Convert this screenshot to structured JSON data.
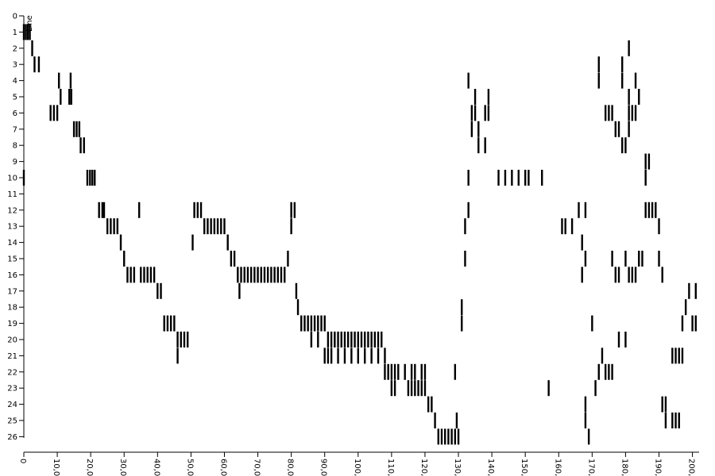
{
  "chart_data": {
    "type": "scatter",
    "title": "",
    "xlabel": "",
    "ylabel": "Line",
    "xlim": [
      0,
      202
    ],
    "ylim": [
      0,
      26
    ],
    "y_ticks": [
      "0",
      "1",
      "2",
      "3",
      "4",
      "5",
      "6",
      "7",
      "8",
      "9",
      "10",
      "11",
      "12",
      "13",
      "14",
      "15",
      "16",
      "17",
      "18",
      "19",
      "20",
      "21",
      "22",
      "23",
      "24",
      "25",
      "26"
    ],
    "x_ticks": [
      "0",
      "10,0",
      "20,0",
      "30,0",
      "40,0",
      "50,0",
      "60,0",
      "70,0",
      "80,0",
      "90,0",
      "100,",
      "110,",
      "120,",
      "130,",
      "140,",
      "150,",
      "160,",
      "170,",
      "180,",
      "190,",
      "200,"
    ],
    "x_tick_values": [
      0,
      10,
      20,
      30,
      40,
      50,
      60,
      70,
      80,
      90,
      100,
      110,
      120,
      130,
      140,
      150,
      160,
      170,
      180,
      190,
      200
    ],
    "grid": false,
    "legend": "none",
    "series": [
      {
        "points": [
          [
            0,
            1
          ],
          [
            0.6,
            1
          ],
          [
            1.2,
            1
          ],
          [
            1.8,
            1
          ],
          [
            2.5,
            2
          ],
          [
            3.2,
            3
          ],
          [
            4.5,
            3
          ],
          [
            10.5,
            4
          ],
          [
            11,
            5
          ],
          [
            14,
            4
          ],
          [
            13.6,
            5
          ],
          [
            14.2,
            5
          ],
          [
            8,
            6
          ],
          [
            9,
            6
          ],
          [
            10,
            6
          ],
          [
            15,
            7
          ],
          [
            15.8,
            7
          ],
          [
            16.6,
            7
          ],
          [
            17,
            8
          ],
          [
            18,
            8
          ],
          [
            19,
            10
          ],
          [
            19.8,
            10
          ],
          [
            20.5,
            10
          ],
          [
            21.2,
            10
          ],
          [
            0,
            10
          ],
          [
            22.5,
            12
          ],
          [
            23.5,
            12
          ],
          [
            24,
            12
          ],
          [
            25,
            13
          ],
          [
            26,
            13
          ],
          [
            27,
            13
          ],
          [
            28,
            13
          ],
          [
            29,
            14
          ],
          [
            30,
            15
          ],
          [
            31,
            16
          ],
          [
            32,
            16
          ],
          [
            33,
            16
          ],
          [
            34.5,
            12
          ],
          [
            35,
            16
          ],
          [
            36,
            16
          ],
          [
            37,
            16
          ],
          [
            38,
            16
          ],
          [
            39,
            16
          ],
          [
            40,
            17
          ],
          [
            41,
            17
          ],
          [
            42,
            19
          ],
          [
            43,
            19
          ],
          [
            44,
            19
          ],
          [
            45,
            19
          ],
          [
            46,
            20
          ],
          [
            47,
            20
          ],
          [
            48,
            20
          ],
          [
            49,
            20
          ],
          [
            46,
            21
          ],
          [
            50.5,
            14
          ],
          [
            51,
            12
          ],
          [
            52,
            12
          ],
          [
            53,
            12
          ],
          [
            54,
            13
          ],
          [
            55,
            13
          ],
          [
            56,
            13
          ],
          [
            57,
            13
          ],
          [
            58,
            13
          ],
          [
            59,
            13
          ],
          [
            60,
            13
          ],
          [
            61,
            14
          ],
          [
            62,
            15
          ],
          [
            63,
            15
          ],
          [
            64,
            16
          ],
          [
            65,
            16
          ],
          [
            66,
            16
          ],
          [
            67,
            16
          ],
          [
            68,
            16
          ],
          [
            69,
            16
          ],
          [
            70,
            16
          ],
          [
            71,
            16
          ],
          [
            72,
            16
          ],
          [
            73,
            16
          ],
          [
            74,
            16
          ],
          [
            75,
            16
          ],
          [
            76,
            16
          ],
          [
            77,
            16
          ],
          [
            78,
            16
          ],
          [
            64.5,
            17
          ],
          [
            79,
            15
          ],
          [
            80,
            12
          ],
          [
            80,
            13
          ],
          [
            81,
            12
          ],
          [
            81.5,
            17
          ],
          [
            82,
            18
          ],
          [
            83,
            19
          ],
          [
            84,
            19
          ],
          [
            85,
            19
          ],
          [
            86,
            19
          ],
          [
            87,
            19
          ],
          [
            88,
            19
          ],
          [
            89,
            19
          ],
          [
            90,
            19
          ],
          [
            86,
            20
          ],
          [
            88,
            20
          ],
          [
            91,
            20
          ],
          [
            92,
            20
          ],
          [
            93,
            20
          ],
          [
            94,
            20
          ],
          [
            95,
            20
          ],
          [
            96,
            20
          ],
          [
            97,
            20
          ],
          [
            98,
            20
          ],
          [
            99,
            20
          ],
          [
            100,
            20
          ],
          [
            101,
            20
          ],
          [
            102,
            20
          ],
          [
            103,
            20
          ],
          [
            104,
            20
          ],
          [
            105,
            20
          ],
          [
            106,
            20
          ],
          [
            107,
            20
          ],
          [
            90,
            21
          ],
          [
            91,
            21
          ],
          [
            92,
            21
          ],
          [
            94,
            21
          ],
          [
            96,
            21
          ],
          [
            98,
            21
          ],
          [
            100,
            21
          ],
          [
            102,
            21
          ],
          [
            104,
            21
          ],
          [
            106,
            21
          ],
          [
            108,
            21
          ],
          [
            108,
            22
          ],
          [
            109,
            22
          ],
          [
            110,
            22
          ],
          [
            111,
            22
          ],
          [
            112,
            22
          ],
          [
            114,
            22
          ],
          [
            116,
            22
          ],
          [
            117,
            22
          ],
          [
            119,
            22
          ],
          [
            120,
            22
          ],
          [
            110,
            23
          ],
          [
            111,
            23
          ],
          [
            115,
            23
          ],
          [
            116,
            23
          ],
          [
            117,
            23
          ],
          [
            118,
            23
          ],
          [
            119,
            23
          ],
          [
            120,
            23
          ],
          [
            121,
            24
          ],
          [
            122,
            24
          ],
          [
            123,
            25
          ],
          [
            124,
            26
          ],
          [
            125,
            26
          ],
          [
            126,
            26
          ],
          [
            127,
            26
          ],
          [
            128,
            26
          ],
          [
            129,
            26
          ],
          [
            130,
            26
          ],
          [
            129.5,
            25
          ],
          [
            129,
            22
          ],
          [
            131,
            18
          ],
          [
            131,
            19
          ],
          [
            132,
            13
          ],
          [
            132,
            15
          ],
          [
            133,
            4
          ],
          [
            133,
            10
          ],
          [
            133,
            12
          ],
          [
            134,
            6
          ],
          [
            134,
            7
          ],
          [
            135,
            5
          ],
          [
            135,
            6
          ],
          [
            136,
            7
          ],
          [
            136,
            8
          ],
          [
            138,
            6
          ],
          [
            138,
            8
          ],
          [
            139,
            5
          ],
          [
            139,
            6
          ],
          [
            142,
            10
          ],
          [
            144,
            10
          ],
          [
            146,
            10
          ],
          [
            148,
            10
          ],
          [
            150,
            10
          ],
          [
            151,
            10
          ],
          [
            155,
            10
          ],
          [
            157,
            23
          ],
          [
            161,
            13
          ],
          [
            162,
            13
          ],
          [
            164,
            13
          ],
          [
            166,
            12
          ],
          [
            167,
            14
          ],
          [
            167,
            16
          ],
          [
            168,
            12
          ],
          [
            168,
            15
          ],
          [
            168,
            24
          ],
          [
            168,
            25
          ],
          [
            169,
            26
          ],
          [
            170,
            19
          ],
          [
            171,
            23
          ],
          [
            172,
            22
          ],
          [
            173,
            21
          ],
          [
            174,
            22
          ],
          [
            175,
            22
          ],
          [
            176,
            22
          ],
          [
            176,
            15
          ],
          [
            177,
            16
          ],
          [
            178,
            20
          ],
          [
            178,
            16
          ],
          [
            180,
            15
          ],
          [
            180,
            20
          ],
          [
            181,
            16
          ],
          [
            182,
            16
          ],
          [
            183,
            16
          ],
          [
            184,
            15
          ],
          [
            185,
            15
          ],
          [
            186,
            12
          ],
          [
            187,
            12
          ],
          [
            188,
            12
          ],
          [
            189,
            12
          ],
          [
            190,
            13
          ],
          [
            190,
            15
          ],
          [
            191,
            16
          ],
          [
            172,
            3
          ],
          [
            172,
            4
          ],
          [
            174,
            6
          ],
          [
            175,
            6
          ],
          [
            176,
            6
          ],
          [
            177,
            7
          ],
          [
            178,
            7
          ],
          [
            179,
            8
          ],
          [
            180,
            8
          ],
          [
            181,
            7
          ],
          [
            181,
            6
          ],
          [
            182,
            6
          ],
          [
            183,
            6
          ],
          [
            179,
            4
          ],
          [
            179,
            3
          ],
          [
            181,
            2
          ],
          [
            181,
            5
          ],
          [
            183,
            4
          ],
          [
            184,
            5
          ],
          [
            186,
            10
          ],
          [
            186,
            9
          ],
          [
            187,
            9
          ],
          [
            191,
            24
          ],
          [
            192,
            24
          ],
          [
            192,
            25
          ],
          [
            194,
            25
          ],
          [
            195,
            25
          ],
          [
            196,
            25
          ],
          [
            194,
            21
          ],
          [
            195,
            21
          ],
          [
            196,
            21
          ],
          [
            197,
            21
          ],
          [
            197,
            19
          ],
          [
            198,
            18
          ],
          [
            199,
            17
          ],
          [
            200,
            19
          ],
          [
            201,
            19
          ],
          [
            201,
            17
          ]
        ]
      }
    ]
  }
}
